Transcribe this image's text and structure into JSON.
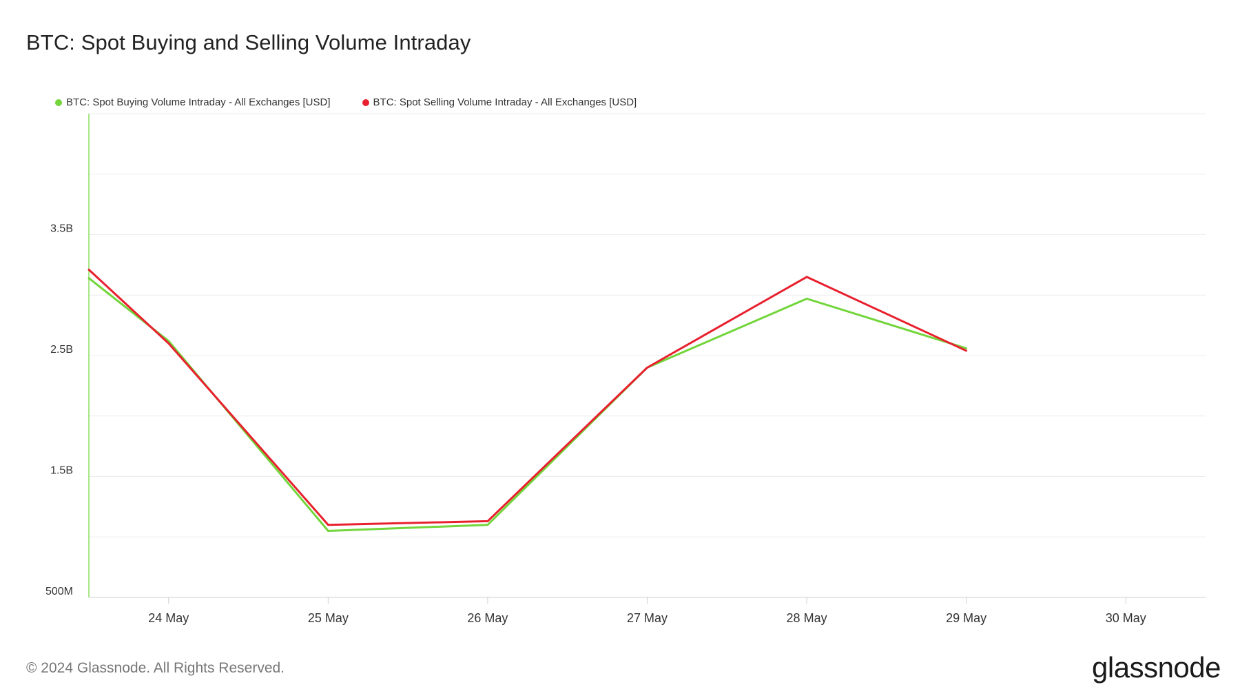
{
  "colors": {
    "buying": "#72d53a",
    "selling": "#e8202e",
    "grid": "#ececec",
    "axis": "#cfcfcf"
  },
  "footer": "© 2024 Glassnode. All Rights Reserved.",
  "brand": "glassnode",
  "chart_data": {
    "type": "line",
    "title": "BTC: Spot Buying and Selling Volume Intraday",
    "xlabel": "",
    "ylabel": "",
    "x": [
      "2024-05-23T12:00",
      "2024-05-24T00:00",
      "2024-05-25T00:00",
      "2024-05-26T00:00",
      "2024-05-27T00:00",
      "2024-05-28T00:00",
      "2024-05-29T00:00"
    ],
    "x_ticks": [
      "24 May",
      "25 May",
      "26 May",
      "27 May",
      "28 May",
      "29 May",
      "30 May"
    ],
    "x_range": [
      "2024-05-23T12:00",
      "2024-05-30T12:00"
    ],
    "y_ticks": [
      "500M",
      "1.5B",
      "2.5B",
      "3.5B"
    ],
    "y_tick_values": [
      500000000,
      1500000000,
      2500000000,
      3500000000
    ],
    "ylim": [
      500000000,
      4500000000
    ],
    "y_scale": "linear",
    "grid": true,
    "legend_position": "top-left",
    "series": [
      {
        "name": "BTC: Spot Buying Volume Intraday - All Exchanges [USD]",
        "color": "#72d53a",
        "values": [
          3140000000,
          2620000000,
          1050000000,
          1100000000,
          2400000000,
          2970000000,
          2560000000
        ]
      },
      {
        "name": "BTC: Spot Selling Volume Intraday - All Exchanges [USD]",
        "color": "#e8202e",
        "values": [
          3210000000,
          2600000000,
          1100000000,
          1130000000,
          2400000000,
          3150000000,
          2540000000
        ]
      }
    ]
  }
}
